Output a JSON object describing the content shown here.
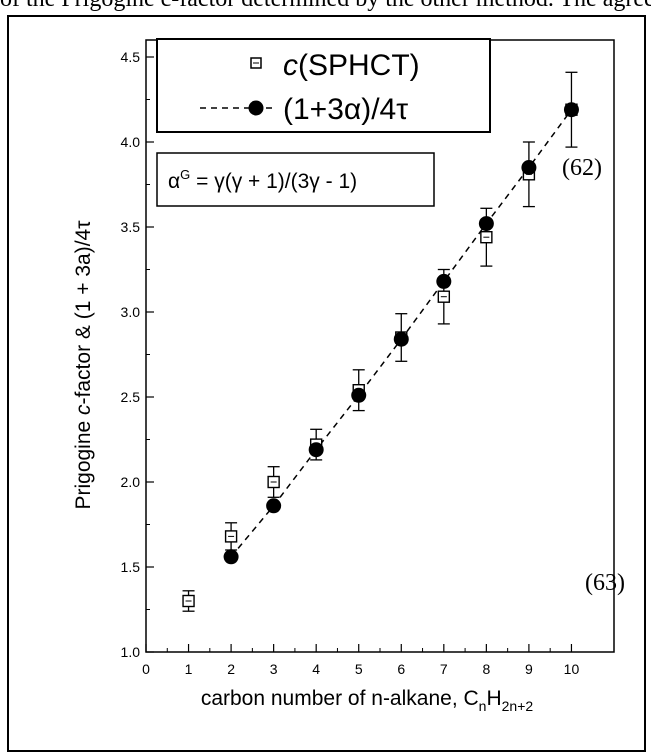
{
  "top_text": "of the Prigogine c-factor determined by the other method. The agreement is fairly good for larger",
  "chart_data": {
    "type": "scatter",
    "xlabel": "carbon number of n-alkane, C",
    "xlabel_sub1": "n",
    "xlabel_mid": "H",
    "xlabel_sub2": "2n+2",
    "ylabel_pre": "Prigogine ",
    "ylabel_italic": "c",
    "ylabel_post": "-factor & (1 + 3a)/4τ",
    "xlim": [
      0,
      11
    ],
    "ylim": [
      1.0,
      4.6
    ],
    "x_ticks": [
      "0",
      "1",
      "2",
      "3",
      "4",
      "5",
      "6",
      "7",
      "8",
      "9",
      "10"
    ],
    "y_ticks": [
      "1.0",
      "1.5",
      "2.0",
      "2.5",
      "3.0",
      "3.5",
      "4.0",
      "4.5"
    ],
    "legend_placement": "top-left",
    "series": [
      {
        "name": "c(SPHCT)",
        "name_italic": "c",
        "name_rest": "(SPHCT)",
        "marker": "open-square",
        "x": [
          1,
          2,
          3,
          4,
          5,
          6,
          7,
          8,
          9,
          10
        ],
        "y": [
          1.3,
          1.68,
          2.0,
          2.22,
          2.54,
          2.85,
          3.09,
          3.44,
          3.81,
          4.19
        ],
        "err": [
          0.06,
          0.08,
          0.09,
          0.09,
          0.12,
          0.14,
          0.16,
          0.17,
          0.19,
          0.22
        ]
      },
      {
        "name": "(1+3α)/4τ",
        "marker": "filled-circle",
        "line": "dashed",
        "x": [
          2,
          3,
          4,
          5,
          6,
          7,
          8,
          9,
          10
        ],
        "y": [
          1.56,
          1.86,
          2.19,
          2.51,
          2.84,
          3.18,
          3.52,
          3.85,
          4.19
        ]
      }
    ],
    "formula": "α^G = γ(γ + 1)/(3γ - 1)",
    "formula_base": "α",
    "formula_sup": "G",
    "formula_rest": " = γ(γ + 1)/(3γ - 1)",
    "annotations": [
      {
        "text": "(62)",
        "near": "upper-right, beside the x=10 point"
      },
      {
        "text": "(63)",
        "near": "lower-right"
      }
    ]
  }
}
